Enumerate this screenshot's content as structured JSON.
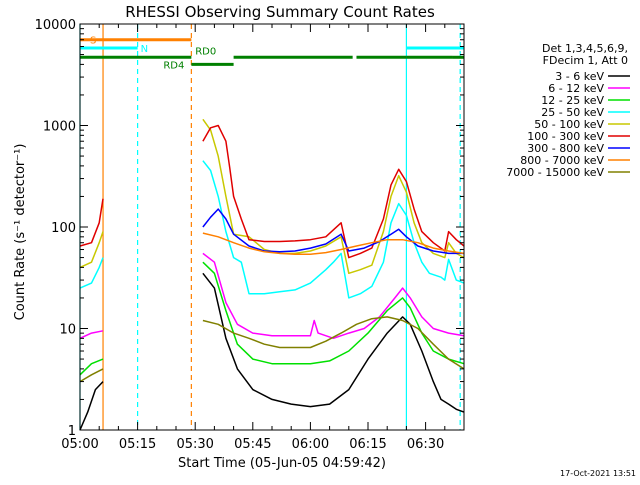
{
  "chart_data": {
    "type": "line",
    "title": "RHESSI Observing Summary Count Rates",
    "xlabel": "Start Time (05-Jun-05 04:59:42)",
    "ylabel": "Count Rate (s⁻¹ detector⁻¹)",
    "yscale": "log",
    "xlim_minutes": [
      0,
      100
    ],
    "ylim": [
      1,
      10000
    ],
    "x_ticks": [
      {
        "label": "05:00",
        "minute": 0
      },
      {
        "label": "05:15",
        "minute": 15
      },
      {
        "label": "05:30",
        "minute": 30
      },
      {
        "label": "05:45",
        "minute": 45
      },
      {
        "label": "06:00",
        "minute": 60
      },
      {
        "label": "06:15",
        "minute": 75
      },
      {
        "label": "06:30",
        "minute": 90
      }
    ],
    "y_ticks": [
      {
        "label": "1",
        "value": 1
      },
      {
        "label": "10",
        "value": 10
      },
      {
        "label": "100",
        "value": 100
      },
      {
        "label": "1000",
        "value": 1000
      },
      {
        "label": "10000",
        "value": 10000
      }
    ],
    "legend": {
      "placement": "right",
      "header": [
        "Det 1,3,4,5,6,9,",
        "FDecim 1, Att 0"
      ],
      "entries": [
        {
          "label": "3 - 6 keV",
          "color": "#000000"
        },
        {
          "label": "6 - 12 keV",
          "color": "#ff00ff"
        },
        {
          "label": "12 - 25 keV",
          "color": "#00e000"
        },
        {
          "label": "25 - 50 keV",
          "color": "#00ffff"
        },
        {
          "label": "50 - 100 keV",
          "color": "#c8c800"
        },
        {
          "label": "100 - 300 keV",
          "color": "#e00000"
        },
        {
          "label": "300 - 800 keV",
          "color": "#0000ff"
        },
        {
          "label": "800 - 7000 keV",
          "color": "#ff8000"
        },
        {
          "label": "7000 - 15000 keV",
          "color": "#808000"
        }
      ]
    },
    "annotations": [
      {
        "label": "S",
        "color": "#ff8000",
        "x0": 0,
        "x1": 29,
        "y": 7000
      },
      {
        "label": "N",
        "color": "#00ffff",
        "x0": 0,
        "x1": 15,
        "y": 5800
      },
      {
        "label": "N",
        "color": "#00ffff",
        "x0": 85,
        "x1": 100,
        "y": 5800
      },
      {
        "label": "RD0",
        "color": "#008000",
        "x0": 0,
        "x1": 100,
        "y": 4700
      },
      {
        "label": "RD4",
        "color": "#008000",
        "x0": 29,
        "x1": 40,
        "y": 4000
      }
    ],
    "vertical_markers": [
      {
        "minute": 0,
        "color": "#00ffff",
        "style": "solid"
      },
      {
        "minute": 6,
        "color": "#ff8000",
        "style": "solid"
      },
      {
        "minute": 15,
        "color": "#00ffff",
        "style": "dashed"
      },
      {
        "minute": 29,
        "color": "#ff8000",
        "style": "dashed"
      },
      {
        "minute": 85,
        "color": "#00ffff",
        "style": "solid"
      },
      {
        "minute": 99,
        "color": "#00ffff",
        "style": "dashed"
      }
    ],
    "gap_minutes": [
      6,
      29
    ],
    "series": [
      {
        "name": "3 - 6 keV",
        "color": "#000000",
        "segments": [
          [
            [
              0,
              1
            ],
            [
              2,
              1.5
            ],
            [
              4,
              2.5
            ],
            [
              6,
              3
            ]
          ],
          [
            [
              32,
              35
            ],
            [
              35,
              25
            ],
            [
              38,
              8
            ],
            [
              41,
              4
            ],
            [
              45,
              2.5
            ],
            [
              50,
              2
            ],
            [
              55,
              1.8
            ],
            [
              60,
              1.7
            ],
            [
              65,
              1.8
            ],
            [
              70,
              2.5
            ],
            [
              75,
              5
            ],
            [
              80,
              9
            ],
            [
              84,
              13
            ],
            [
              86,
              11
            ],
            [
              89,
              6
            ],
            [
              92,
              3
            ],
            [
              94,
              2
            ],
            [
              96,
              1.8
            ],
            [
              98,
              1.6
            ],
            [
              100,
              1.5
            ]
          ]
        ]
      },
      {
        "name": "6 - 12 keV",
        "color": "#ff00ff",
        "segments": [
          [
            [
              0,
              8
            ],
            [
              3,
              9
            ],
            [
              6,
              9.5
            ]
          ],
          [
            [
              32,
              55
            ],
            [
              35,
              45
            ],
            [
              38,
              18
            ],
            [
              41,
              11
            ],
            [
              45,
              9
            ],
            [
              50,
              8.5
            ],
            [
              55,
              8.5
            ],
            [
              60,
              8.5
            ],
            [
              61,
              12
            ],
            [
              62,
              9
            ],
            [
              66,
              8
            ],
            [
              70,
              9
            ],
            [
              74,
              10
            ],
            [
              78,
              13
            ],
            [
              82,
              20
            ],
            [
              84,
              25
            ],
            [
              86,
              20
            ],
            [
              89,
              13
            ],
            [
              92,
              10
            ],
            [
              96,
              9
            ],
            [
              100,
              8.5
            ]
          ]
        ]
      },
      {
        "name": "12 - 25 keV",
        "color": "#00e000",
        "segments": [
          [
            [
              0,
              3.5
            ],
            [
              3,
              4.5
            ],
            [
              6,
              5
            ]
          ],
          [
            [
              32,
              45
            ],
            [
              35,
              35
            ],
            [
              38,
              15
            ],
            [
              41,
              7
            ],
            [
              45,
              5
            ],
            [
              50,
              4.5
            ],
            [
              55,
              4.5
            ],
            [
              60,
              4.5
            ],
            [
              65,
              4.8
            ],
            [
              70,
              6
            ],
            [
              75,
              9
            ],
            [
              80,
              15
            ],
            [
              84,
              20
            ],
            [
              86,
              16
            ],
            [
              89,
              9
            ],
            [
              92,
              6
            ],
            [
              96,
              5
            ],
            [
              100,
              4.5
            ]
          ]
        ]
      },
      {
        "name": "25 - 50 keV",
        "color": "#00ffff",
        "segments": [
          [
            [
              0,
              25
            ],
            [
              3,
              28
            ],
            [
              5,
              40
            ],
            [
              6,
              50
            ]
          ],
          [
            [
              32,
              450
            ],
            [
              34,
              360
            ],
            [
              36,
              200
            ],
            [
              38,
              90
            ],
            [
              40,
              50
            ],
            [
              42,
              45
            ],
            [
              44,
              22
            ],
            [
              48,
              22
            ],
            [
              52,
              23
            ],
            [
              56,
              24
            ],
            [
              60,
              28
            ],
            [
              64,
              38
            ],
            [
              66,
              45
            ],
            [
              68,
              55
            ],
            [
              70,
              20
            ],
            [
              73,
              22
            ],
            [
              76,
              26
            ],
            [
              79,
              45
            ],
            [
              81,
              110
            ],
            [
              83,
              170
            ],
            [
              85,
              130
            ],
            [
              87,
              70
            ],
            [
              89,
              45
            ],
            [
              91,
              35
            ],
            [
              94,
              32
            ],
            [
              95,
              30
            ],
            [
              96,
              48
            ],
            [
              98,
              30
            ],
            [
              100,
              28
            ]
          ]
        ]
      },
      {
        "name": "50 - 100 keV",
        "color": "#c8c800",
        "segments": [
          [
            [
              0,
              40
            ],
            [
              3,
              45
            ],
            [
              5,
              70
            ],
            [
              6,
              90
            ]
          ],
          [
            [
              32,
              1150
            ],
            [
              34,
              900
            ],
            [
              36,
              500
            ],
            [
              38,
              200
            ],
            [
              40,
              85
            ],
            [
              44,
              80
            ],
            [
              48,
              60
            ],
            [
              52,
              55
            ],
            [
              56,
              55
            ],
            [
              60,
              58
            ],
            [
              64,
              65
            ],
            [
              68,
              80
            ],
            [
              70,
              35
            ],
            [
              73,
              38
            ],
            [
              76,
              42
            ],
            [
              79,
              90
            ],
            [
              81,
              200
            ],
            [
              83,
              320
            ],
            [
              85,
              220
            ],
            [
              87,
              110
            ],
            [
              89,
              70
            ],
            [
              92,
              55
            ],
            [
              95,
              50
            ],
            [
              96,
              70
            ],
            [
              98,
              55
            ],
            [
              100,
              50
            ]
          ]
        ]
      },
      {
        "name": "100 - 300 keV",
        "color": "#e00000",
        "segments": [
          [
            [
              0,
              65
            ],
            [
              3,
              70
            ],
            [
              5,
              110
            ],
            [
              6,
              190
            ]
          ],
          [
            [
              32,
              700
            ],
            [
              34,
              950
            ],
            [
              36,
              1000
            ],
            [
              38,
              700
            ],
            [
              39,
              380
            ],
            [
              40,
              200
            ],
            [
              42,
              120
            ],
            [
              44,
              75
            ],
            [
              48,
              72
            ],
            [
              52,
              72
            ],
            [
              56,
              73
            ],
            [
              60,
              75
            ],
            [
              64,
              80
            ],
            [
              68,
              110
            ],
            [
              70,
              50
            ],
            [
              73,
              55
            ],
            [
              76,
              62
            ],
            [
              79,
              120
            ],
            [
              81,
              260
            ],
            [
              83,
              370
            ],
            [
              85,
              280
            ],
            [
              87,
              150
            ],
            [
              89,
              90
            ],
            [
              92,
              70
            ],
            [
              95,
              58
            ],
            [
              96,
              90
            ],
            [
              98,
              75
            ],
            [
              100,
              65
            ]
          ]
        ]
      },
      {
        "name": "300 - 800 keV",
        "color": "#0000ff",
        "segments": [
          [
            [
              32,
              100
            ],
            [
              34,
              125
            ],
            [
              36,
              150
            ],
            [
              38,
              120
            ],
            [
              40,
              85
            ],
            [
              44,
              65
            ],
            [
              48,
              58
            ],
            [
              52,
              57
            ],
            [
              56,
              58
            ],
            [
              60,
              62
            ],
            [
              64,
              68
            ],
            [
              68,
              85
            ],
            [
              70,
              58
            ],
            [
              74,
              62
            ],
            [
              78,
              72
            ],
            [
              81,
              85
            ],
            [
              83,
              95
            ],
            [
              85,
              80
            ],
            [
              88,
              65
            ],
            [
              92,
              58
            ],
            [
              96,
              55
            ],
            [
              100,
              55
            ]
          ]
        ]
      },
      {
        "name": "800 - 7000 keV",
        "color": "#ff8000",
        "segments": [
          [
            [
              32,
              87
            ],
            [
              36,
              80
            ],
            [
              40,
              70
            ],
            [
              44,
              62
            ],
            [
              48,
              57
            ],
            [
              52,
              55
            ],
            [
              56,
              54
            ],
            [
              60,
              54
            ],
            [
              64,
              56
            ],
            [
              68,
              60
            ],
            [
              72,
              65
            ],
            [
              76,
              70
            ],
            [
              80,
              75
            ],
            [
              84,
              75
            ],
            [
              88,
              70
            ],
            [
              92,
              62
            ],
            [
              96,
              58
            ],
            [
              100,
              55
            ]
          ]
        ]
      },
      {
        "name": "7000 - 15000 keV",
        "color": "#808000",
        "segments": [
          [
            [
              0,
              3
            ],
            [
              3,
              3.5
            ],
            [
              6,
              4
            ]
          ],
          [
            [
              32,
              12
            ],
            [
              36,
              11
            ],
            [
              40,
              9
            ],
            [
              44,
              8
            ],
            [
              48,
              7
            ],
            [
              52,
              6.5
            ],
            [
              56,
              6.5
            ],
            [
              60,
              6.5
            ],
            [
              64,
              7.5
            ],
            [
              68,
              9
            ],
            [
              72,
              11
            ],
            [
              76,
              12.5
            ],
            [
              80,
              13
            ],
            [
              84,
              12
            ],
            [
              88,
              10
            ],
            [
              92,
              7
            ],
            [
              96,
              5
            ],
            [
              100,
              4
            ]
          ]
        ]
      }
    ]
  },
  "footer_date": "17-Oct-2021 13:51"
}
